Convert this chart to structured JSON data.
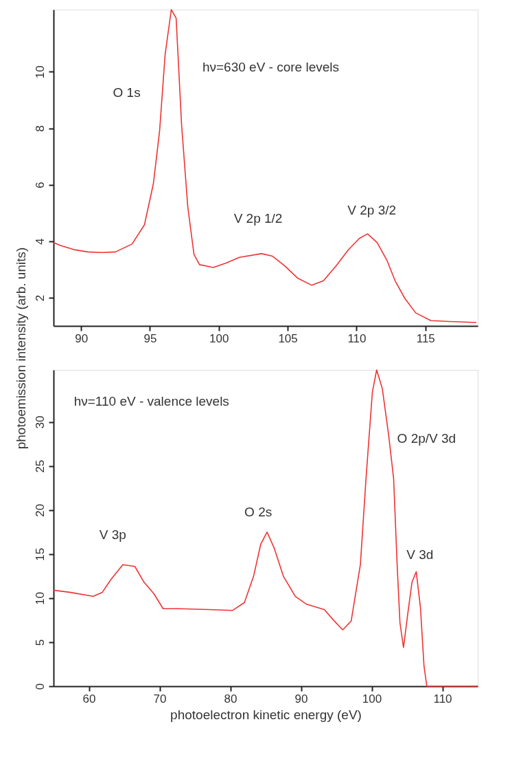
{
  "chart_data": [
    {
      "type": "line",
      "ylabel": "photoemission intensity (arb. units)",
      "xlim": [
        88,
        118.8
      ],
      "ylim": [
        1,
        12.2
      ],
      "xticks": [
        90,
        95,
        100,
        105,
        110,
        115
      ],
      "yticks": [
        2,
        4,
        6,
        8,
        10
      ],
      "grid": false,
      "marker": "none",
      "line_style": "solid",
      "x": [
        88,
        88.5,
        89.5,
        90.5,
        91.5,
        92.5,
        93.7,
        94.6,
        95.25,
        95.7,
        96.1,
        96.55,
        96.9,
        97.3,
        97.75,
        98.2,
        98.6,
        99.6,
        100.5,
        101.5,
        103.1,
        103.9,
        104.8,
        105.7,
        106.75,
        107.6,
        108.5,
        109.4,
        110.2,
        110.8,
        111.5,
        112.2,
        112.8,
        113.5,
        114.3,
        115.4,
        116.7,
        118.7
      ],
      "series": [
        {
          "color": "#ee3333",
          "values": [
            3.95,
            3.85,
            3.7,
            3.62,
            3.6,
            3.62,
            3.9,
            4.58,
            6.04,
            7.9,
            10.6,
            12.2,
            11.9,
            8.1,
            5.2,
            3.53,
            3.17,
            3.07,
            3.22,
            3.43,
            3.56,
            3.47,
            3.12,
            2.7,
            2.44,
            2.6,
            3.12,
            3.69,
            4.1,
            4.26,
            3.95,
            3.33,
            2.6,
            1.98,
            1.46,
            1.19,
            1.16,
            1.12
          ]
        }
      ],
      "annotations": [
        "hν=630 eV - core levels",
        "O 1s",
        "V 2p 1/2",
        "V 2p 3/2"
      ]
    },
    {
      "type": "line",
      "xlabel": "photoelectron kinetic energy (eV)",
      "xlim": [
        55,
        115
      ],
      "ylim": [
        0,
        35.9
      ],
      "xticks": [
        60,
        70,
        80,
        90,
        100,
        110
      ],
      "yticks": [
        0,
        5,
        10,
        15,
        20,
        25,
        30
      ],
      "grid": false,
      "marker": "none",
      "line_style": "solid",
      "x": [
        55,
        57.3,
        60.6,
        61.9,
        63.1,
        64.8,
        66.5,
        67.8,
        69.2,
        70.5,
        72.8,
        77,
        80.3,
        82,
        83.3,
        84.3,
        85.2,
        86.2,
        87.5,
        89.2,
        90.8,
        93.3,
        94.6,
        95.9,
        97.1,
        98.4,
        99.2,
        100.1,
        100.7,
        101.5,
        102.4,
        103.1,
        103.6,
        104,
        104.5,
        105.1,
        105.7,
        106.3,
        106.9,
        107.4,
        107.8,
        110.5,
        115
      ],
      "series": [
        {
          "color": "#ee3333",
          "values": [
            10.9,
            10.66,
            10.2,
            10.66,
            12.1,
            13.8,
            13.6,
            11.8,
            10.5,
            8.8,
            8.8,
            8.7,
            8.6,
            9.5,
            12.5,
            16.1,
            17.5,
            15.7,
            12.5,
            10.2,
            9.3,
            8.7,
            7.5,
            6.4,
            7.4,
            13.8,
            23.6,
            33.4,
            35.9,
            33.8,
            28.5,
            23.6,
            13.8,
            7.2,
            4.4,
            8.2,
            11.8,
            13.0,
            8.9,
            2.3,
            0,
            0,
            0
          ]
        }
      ],
      "annotations": [
        "hν=110 eV - valence levels",
        "V 3p",
        "O 2s",
        "O 2p/V 3d",
        "V 3d"
      ]
    }
  ]
}
